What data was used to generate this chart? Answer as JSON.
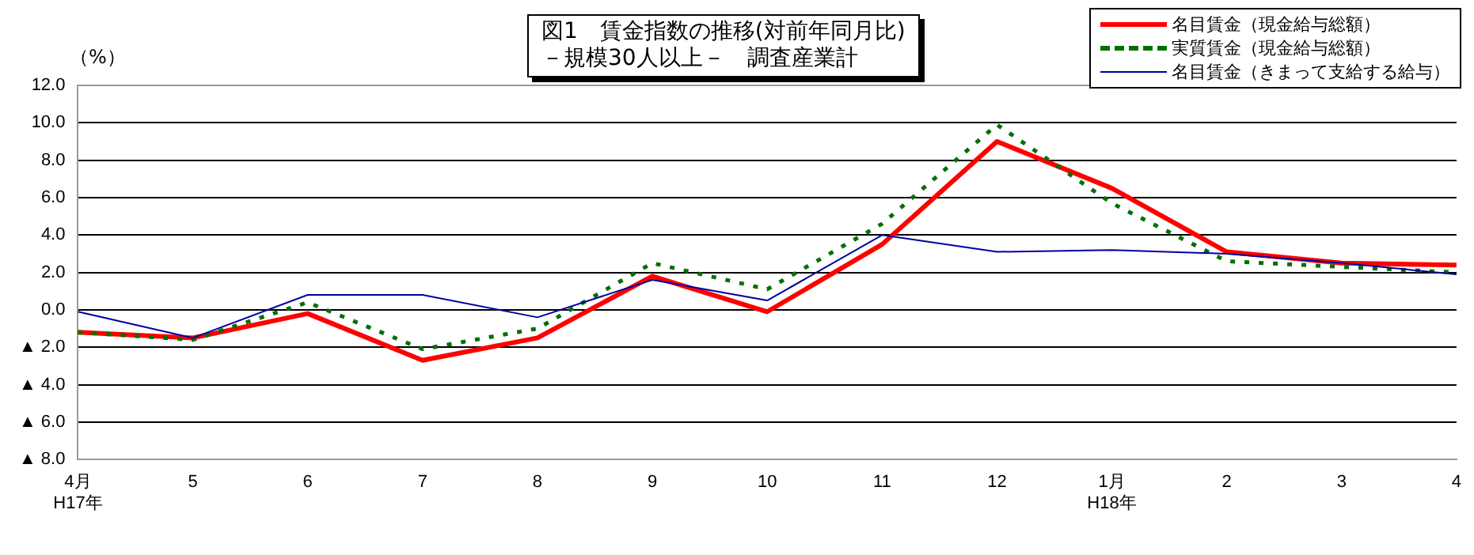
{
  "chart_data": {
    "type": "line",
    "title": "図1　賃金指数の推移(対前年同月比)\n－規模30人以上－　調査産業計",
    "ylabel": "（%）",
    "categories": [
      "4月\nH17年",
      "5",
      "6",
      "7",
      "8",
      "9",
      "10",
      "11",
      "12",
      "1月\nH18年",
      "2",
      "3",
      "4"
    ],
    "series": [
      {
        "name": "名目賃金（現金給与総額）",
        "color": "#ff0000",
        "line_style": "solid",
        "values": [
          -1.2,
          -1.5,
          -0.2,
          -2.7,
          -1.5,
          1.8,
          -0.1,
          3.5,
          9.0,
          6.5,
          3.1,
          2.5,
          2.4
        ]
      },
      {
        "name": "実質賃金（現金給与総額）",
        "color": "#007000",
        "line_style": "dotted",
        "values": [
          -1.2,
          -1.6,
          0.4,
          -2.1,
          -1.0,
          2.5,
          1.1,
          4.6,
          9.9,
          5.7,
          2.6,
          2.3,
          2.0
        ]
      },
      {
        "name": "名目賃金（きまって支給する給与）",
        "color": "#0000a0",
        "line_style": "solid",
        "values": [
          -0.1,
          -1.5,
          0.8,
          0.8,
          -0.4,
          1.6,
          0.5,
          4.0,
          3.1,
          3.2,
          3.0,
          2.5,
          1.9
        ]
      }
    ],
    "ylim": [
      -8,
      12
    ],
    "yticks": [
      {
        "value": 12,
        "label": "12.0"
      },
      {
        "value": 10,
        "label": "10.0"
      },
      {
        "value": 8,
        "label": "8.0"
      },
      {
        "value": 6,
        "label": "6.0"
      },
      {
        "value": 4,
        "label": "4.0"
      },
      {
        "value": 2,
        "label": "2.0"
      },
      {
        "value": 0,
        "label": "0.0"
      },
      {
        "value": -2,
        "label": "▲ 2.0"
      },
      {
        "value": -4,
        "label": "▲ 4.0"
      },
      {
        "value": -6,
        "label": "▲ 6.0"
      },
      {
        "value": -8,
        "label": "▲ 8.0"
      }
    ],
    "grid": "y",
    "legend": "top right",
    "marker": "none"
  }
}
